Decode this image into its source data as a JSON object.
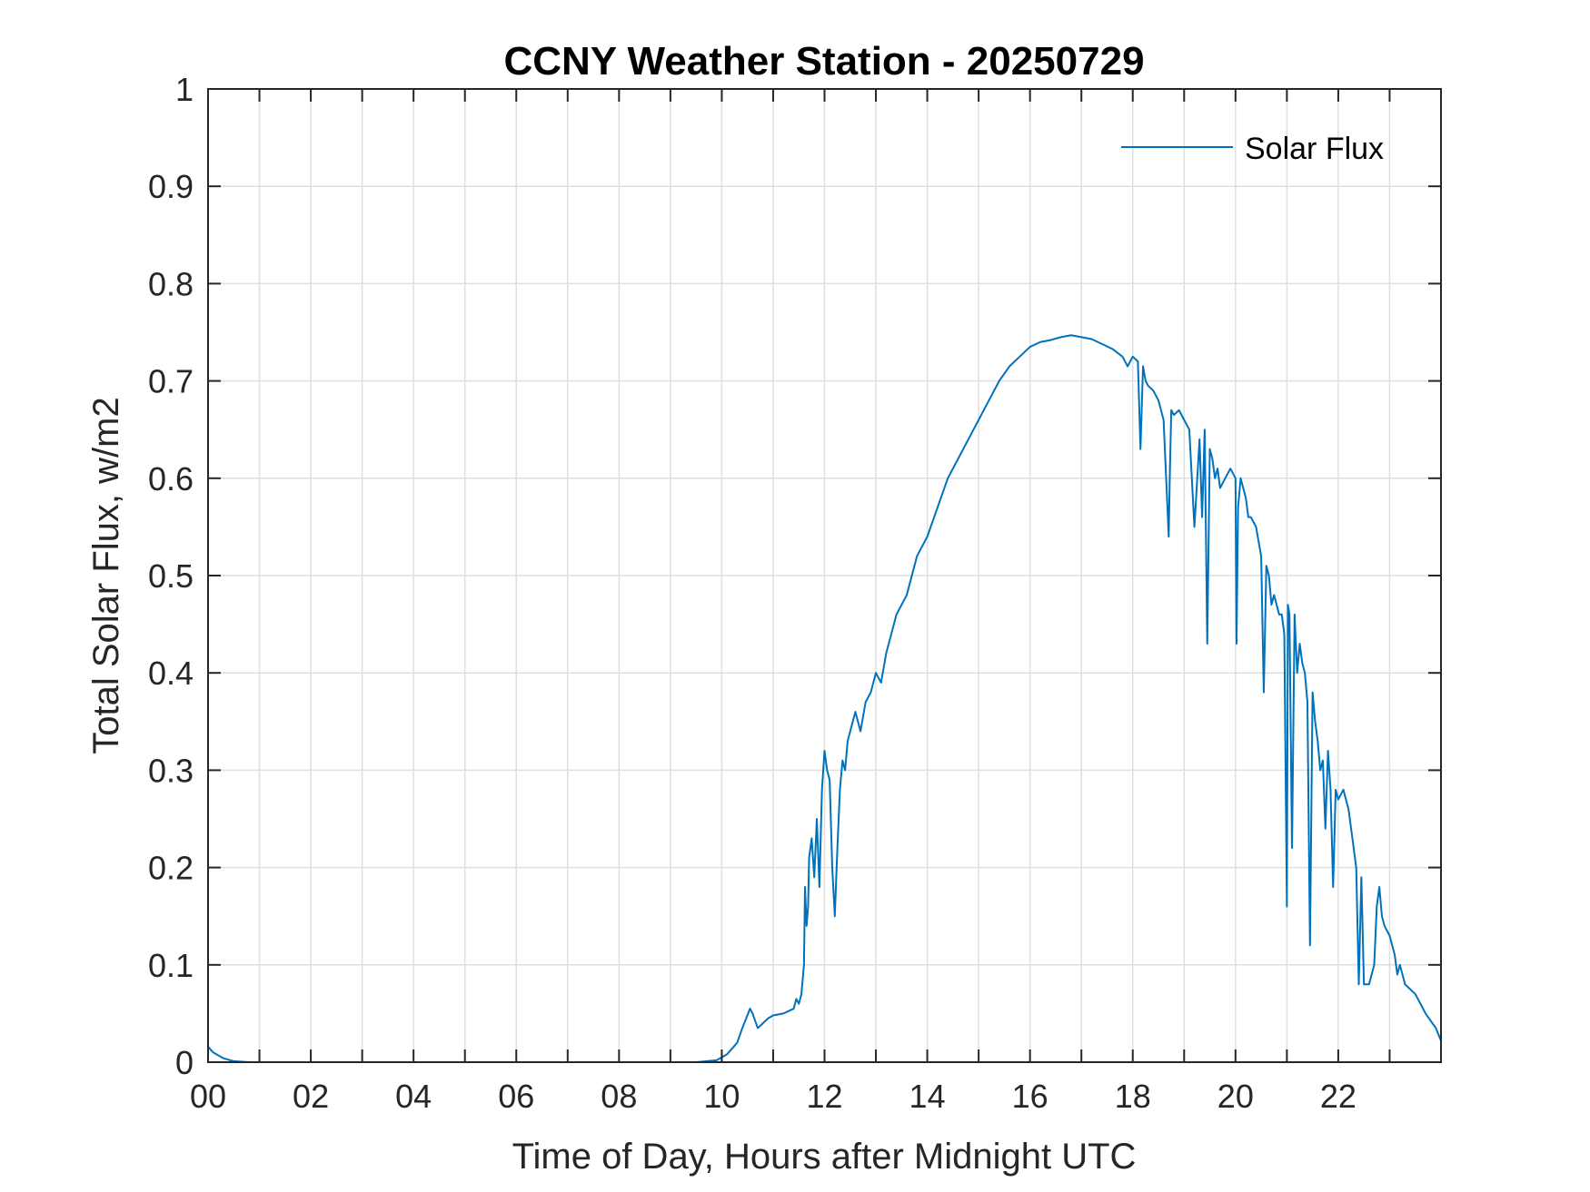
{
  "chart_data": {
    "type": "line",
    "title": "CCNY Weather Station - 20250729",
    "xlabel": "Time of Day, Hours after Midnight UTC",
    "ylabel": "Total Solar Flux, w/m2",
    "xlim": [
      0,
      24
    ],
    "ylim": [
      0,
      1
    ],
    "xticks": [
      0,
      2,
      4,
      6,
      8,
      10,
      12,
      14,
      16,
      18,
      20,
      22
    ],
    "xtick_labels": [
      "00",
      "02",
      "04",
      "06",
      "08",
      "10",
      "12",
      "14",
      "16",
      "18",
      "20",
      "22"
    ],
    "yticks": [
      0,
      0.1,
      0.2,
      0.3,
      0.4,
      0.5,
      0.6,
      0.7,
      0.8,
      0.9,
      1
    ],
    "ytick_labels": [
      "0",
      "0.1",
      "0.2",
      "0.3",
      "0.4",
      "0.5",
      "0.6",
      "0.7",
      "0.8",
      "0.9",
      "1"
    ],
    "grid": true,
    "legend": {
      "position": "top-right",
      "entries": [
        "Solar Flux"
      ]
    },
    "series": [
      {
        "name": "Solar Flux",
        "color": "#0072BD",
        "x": [
          0,
          0.1,
          0.3,
          0.5,
          0.8,
          1,
          2,
          4,
          6,
          8,
          9.5,
          9.9,
          10.1,
          10.3,
          10.4,
          10.55,
          10.6,
          10.7,
          10.9,
          11.0,
          11.2,
          11.4,
          11.45,
          11.5,
          11.55,
          11.6,
          11.62,
          11.65,
          11.68,
          11.7,
          11.75,
          11.8,
          11.85,
          11.9,
          11.95,
          12.0,
          12.05,
          12.1,
          12.15,
          12.2,
          12.25,
          12.3,
          12.35,
          12.4,
          12.45,
          12.5,
          12.55,
          12.6,
          12.7,
          12.8,
          12.9,
          13.0,
          13.1,
          13.2,
          13.3,
          13.4,
          13.5,
          13.6,
          13.7,
          13.8,
          13.9,
          14.0,
          14.2,
          14.4,
          14.6,
          14.8,
          15.0,
          15.2,
          15.4,
          15.6,
          15.8,
          16.0,
          16.2,
          16.4,
          16.6,
          16.8,
          17.0,
          17.2,
          17.4,
          17.6,
          17.8,
          17.9,
          18.0,
          18.1,
          18.15,
          18.2,
          18.25,
          18.3,
          18.4,
          18.5,
          18.6,
          18.7,
          18.72,
          18.75,
          18.8,
          18.9,
          19.0,
          19.1,
          19.2,
          19.3,
          19.35,
          19.4,
          19.45,
          19.5,
          19.55,
          19.6,
          19.65,
          19.7,
          19.8,
          19.9,
          20.0,
          20.02,
          20.05,
          20.1,
          20.15,
          20.2,
          20.25,
          20.3,
          20.4,
          20.5,
          20.55,
          20.6,
          20.65,
          20.7,
          20.75,
          20.8,
          20.85,
          20.9,
          20.95,
          21.0,
          21.02,
          21.05,
          21.1,
          21.15,
          21.2,
          21.25,
          21.3,
          21.35,
          21.4,
          21.45,
          21.5,
          21.55,
          21.6,
          21.65,
          21.7,
          21.75,
          21.8,
          21.85,
          21.9,
          21.95,
          22.0,
          22.1,
          22.2,
          22.3,
          22.35,
          22.4,
          22.45,
          22.5,
          22.6,
          22.7,
          22.75,
          22.8,
          22.85,
          22.9,
          23.0,
          23.1,
          23.15,
          23.2,
          23.3,
          23.5,
          23.7,
          23.9,
          24.0
        ],
        "values": [
          0.016,
          0.01,
          0.004,
          0.001,
          0.0,
          0.0,
          0.0,
          0.0,
          0.0,
          0.0,
          0.0,
          0.002,
          0.008,
          0.02,
          0.035,
          0.055,
          0.05,
          0.035,
          0.045,
          0.048,
          0.05,
          0.055,
          0.065,
          0.06,
          0.07,
          0.1,
          0.18,
          0.14,
          0.16,
          0.21,
          0.23,
          0.19,
          0.25,
          0.18,
          0.28,
          0.32,
          0.3,
          0.29,
          0.2,
          0.15,
          0.22,
          0.28,
          0.31,
          0.3,
          0.33,
          0.34,
          0.35,
          0.36,
          0.34,
          0.37,
          0.38,
          0.4,
          0.39,
          0.42,
          0.44,
          0.46,
          0.47,
          0.48,
          0.5,
          0.52,
          0.53,
          0.54,
          0.57,
          0.6,
          0.62,
          0.64,
          0.66,
          0.68,
          0.7,
          0.715,
          0.725,
          0.735,
          0.74,
          0.742,
          0.745,
          0.747,
          0.745,
          0.743,
          0.738,
          0.733,
          0.725,
          0.715,
          0.725,
          0.72,
          0.63,
          0.715,
          0.7,
          0.695,
          0.69,
          0.68,
          0.66,
          0.54,
          0.6,
          0.67,
          0.665,
          0.67,
          0.66,
          0.65,
          0.55,
          0.64,
          0.56,
          0.65,
          0.43,
          0.63,
          0.62,
          0.6,
          0.61,
          0.59,
          0.6,
          0.61,
          0.6,
          0.43,
          0.57,
          0.6,
          0.59,
          0.58,
          0.56,
          0.56,
          0.55,
          0.52,
          0.38,
          0.51,
          0.5,
          0.47,
          0.48,
          0.47,
          0.46,
          0.46,
          0.44,
          0.16,
          0.47,
          0.46,
          0.22,
          0.46,
          0.4,
          0.43,
          0.41,
          0.4,
          0.37,
          0.12,
          0.38,
          0.35,
          0.33,
          0.3,
          0.31,
          0.24,
          0.32,
          0.28,
          0.18,
          0.28,
          0.27,
          0.28,
          0.26,
          0.22,
          0.2,
          0.08,
          0.19,
          0.08,
          0.08,
          0.1,
          0.16,
          0.18,
          0.15,
          0.14,
          0.13,
          0.11,
          0.09,
          0.1,
          0.08,
          0.07,
          0.05,
          0.035,
          0.022
        ]
      }
    ]
  }
}
